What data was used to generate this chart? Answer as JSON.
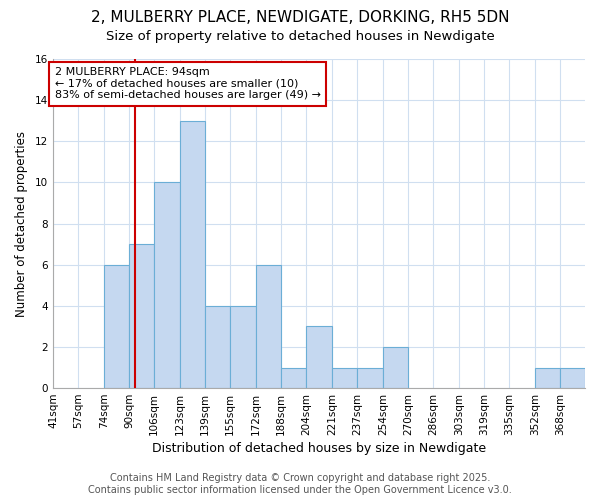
{
  "title": "2, MULBERRY PLACE, NEWDIGATE, DORKING, RH5 5DN",
  "subtitle": "Size of property relative to detached houses in Newdigate",
  "xlabel": "Distribution of detached houses by size in Newdigate",
  "ylabel": "Number of detached properties",
  "bin_edges": [
    41,
    57,
    74,
    90,
    106,
    123,
    139,
    155,
    172,
    188,
    204,
    221,
    237,
    254,
    270,
    286,
    303,
    319,
    335,
    352,
    368,
    384
  ],
  "counts": [
    0,
    0,
    6,
    7,
    10,
    13,
    4,
    4,
    6,
    1,
    3,
    1,
    1,
    2,
    0,
    0,
    0,
    0,
    0,
    1,
    1
  ],
  "property_size": 94,
  "bar_color": "#c5d8f0",
  "bar_edge_color": "#6baed6",
  "red_line_color": "#cc0000",
  "annotation_text": "2 MULBERRY PLACE: 94sqm\n← 17% of detached houses are smaller (10)\n83% of semi-detached houses are larger (49) →",
  "annotation_box_facecolor": "#ffffff",
  "annotation_box_edgecolor": "#cc0000",
  "ylim": [
    0,
    16
  ],
  "yticks": [
    0,
    2,
    4,
    6,
    8,
    10,
    12,
    14,
    16
  ],
  "background_color": "#ffffff",
  "grid_color": "#d0dff0",
  "footer_text": "Contains HM Land Registry data © Crown copyright and database right 2025.\nContains public sector information licensed under the Open Government Licence v3.0.",
  "title_fontsize": 11,
  "subtitle_fontsize": 9.5,
  "xlabel_fontsize": 9,
  "ylabel_fontsize": 8.5,
  "tick_fontsize": 7.5,
  "annotation_fontsize": 8,
  "footer_fontsize": 7
}
